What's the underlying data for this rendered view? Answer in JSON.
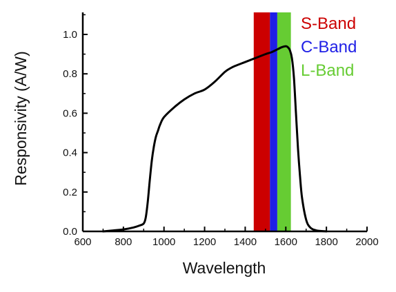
{
  "chart_data": {
    "type": "line",
    "xlabel": "Wavelength",
    "ylabel": "Responsivity (A/W)",
    "xlim": [
      600,
      2000
    ],
    "ylim": [
      0.0,
      1.1
    ],
    "x_ticks": [
      600,
      800,
      1000,
      1200,
      1400,
      1600,
      1800,
      2000
    ],
    "x_tick_labels": [
      "600",
      "800",
      "1000",
      "1200",
      "1400",
      "1600",
      "1800",
      "2000"
    ],
    "y_ticks": [
      0.0,
      0.2,
      0.4,
      0.6,
      0.8,
      1.0
    ],
    "y_tick_labels": [
      "0.0",
      "0.2",
      "0.4",
      "0.6",
      "0.8",
      "1.0"
    ],
    "grid": false,
    "series": [
      {
        "color": "#000000",
        "x": [
          700,
          750,
          800,
          850,
          880,
          900,
          910,
          920,
          930,
          940,
          950,
          960,
          970,
          980,
          1000,
          1050,
          1100,
          1150,
          1200,
          1250,
          1300,
          1330,
          1350,
          1400,
          1450,
          1500,
          1530,
          1560,
          1580,
          1600,
          1610,
          1620,
          1630,
          1640,
          1650,
          1660,
          1670,
          1680,
          1700,
          1720,
          1750,
          1800
        ],
        "y": [
          0.0,
          0.005,
          0.01,
          0.02,
          0.03,
          0.04,
          0.07,
          0.15,
          0.26,
          0.36,
          0.43,
          0.48,
          0.51,
          0.54,
          0.58,
          0.63,
          0.67,
          0.7,
          0.72,
          0.76,
          0.81,
          0.83,
          0.84,
          0.86,
          0.88,
          0.9,
          0.91,
          0.925,
          0.935,
          0.94,
          0.935,
          0.92,
          0.88,
          0.78,
          0.6,
          0.42,
          0.28,
          0.17,
          0.06,
          0.02,
          0.005,
          0.0
        ]
      }
    ],
    "bands": [
      {
        "name": "S-Band",
        "x_start": 1442,
        "x_end": 1522,
        "color": "#cc0000"
      },
      {
        "name": "C-Band",
        "x_start": 1522,
        "x_end": 1558,
        "color": "#1f1fe6"
      },
      {
        "name": "L-Band",
        "x_start": 1558,
        "x_end": 1625,
        "color": "#66cc33"
      }
    ]
  }
}
